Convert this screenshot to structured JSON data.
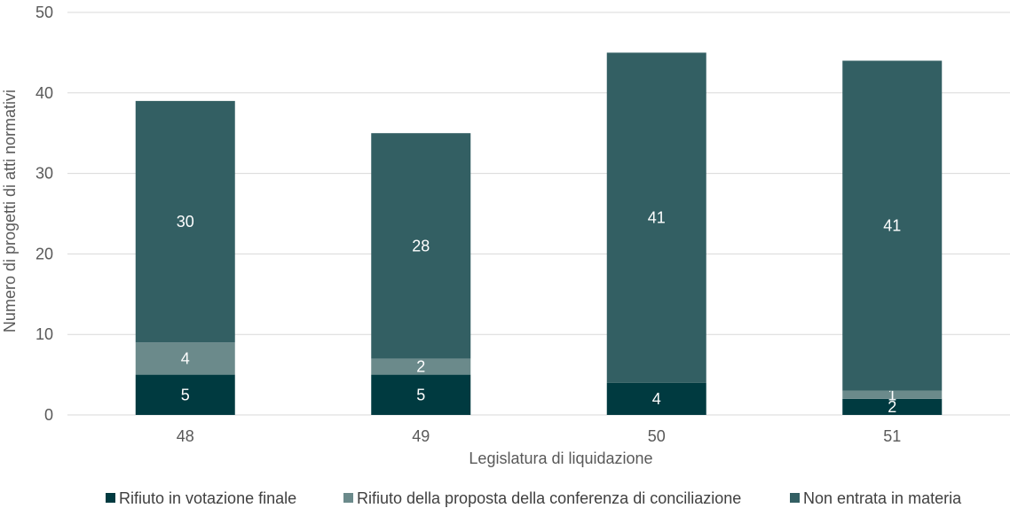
{
  "chart_data": {
    "type": "bar",
    "stacked": true,
    "categories": [
      "48",
      "49",
      "50",
      "51"
    ],
    "series": [
      {
        "name": "Rifiuto in votazione finale",
        "values": [
          5,
          5,
          4,
          2
        ],
        "color": "#003a40"
      },
      {
        "name": "Rifiuto della proposta della conferenza di conciliazione",
        "values": [
          4,
          2,
          0,
          1
        ],
        "color": "#6b8a8b"
      },
      {
        "name": "Non entrata in materia",
        "values": [
          30,
          28,
          41,
          41
        ],
        "color": "#335f63"
      }
    ],
    "data_labels": [
      [
        "5",
        "5",
        "4",
        "2"
      ],
      [
        "4",
        "2",
        "",
        "1"
      ],
      [
        "30",
        "28",
        "41",
        "41"
      ]
    ],
    "xlabel": "Legislatura di liquidazione",
    "ylabel": "Numero di progetti di atti normativi",
    "ylim": [
      0,
      50
    ],
    "yticks": [
      "0",
      "10",
      "20",
      "30",
      "40",
      "50"
    ],
    "grid": true,
    "legend_position": "bottom"
  }
}
